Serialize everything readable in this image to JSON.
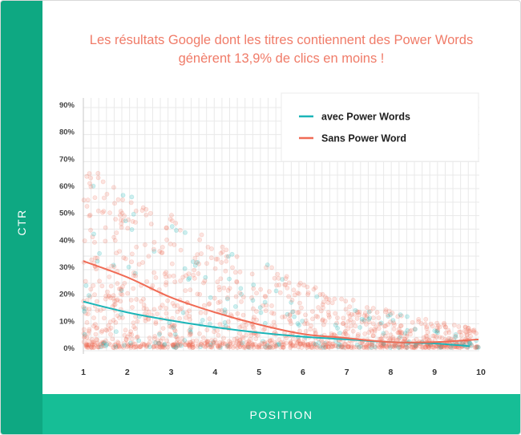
{
  "chart_data": {
    "type": "scatter",
    "title": [
      "Les résultats Google dont les titres contiennent des Power Words",
      "génèrent 13,9% de clics en moins !"
    ],
    "xlabel": "POSITION",
    "ylabel": "CTR",
    "xlim": [
      1,
      10
    ],
    "ylim": [
      0,
      90
    ],
    "x_ticks": [
      "1",
      "2",
      "3",
      "4",
      "5",
      "6",
      "7",
      "8",
      "9",
      "10"
    ],
    "y_ticks": [
      "0%",
      "10%",
      "20%",
      "30%",
      "40%",
      "50%",
      "60%",
      "70%",
      "80%",
      "90%"
    ],
    "grid": true,
    "legend_position": "top-right",
    "series": [
      {
        "name": "avec Power Words",
        "color": "#1bb5b8",
        "trend": {
          "x": [
            1,
            2,
            3,
            4,
            5,
            6,
            7,
            8,
            9,
            9.8
          ],
          "y": [
            17,
            13,
            10,
            7.5,
            5.5,
            4,
            3,
            2,
            1.5,
            0.5
          ]
        }
      },
      {
        "name": "Sans Power Word",
        "color": "#f06b55",
        "trend": {
          "x": [
            1,
            2,
            3,
            4,
            5,
            6,
            7,
            8,
            9,
            10
          ],
          "y": [
            32,
            26,
            18.5,
            13,
            8.5,
            5,
            3.5,
            2,
            2,
            3
          ]
        }
      }
    ]
  }
}
